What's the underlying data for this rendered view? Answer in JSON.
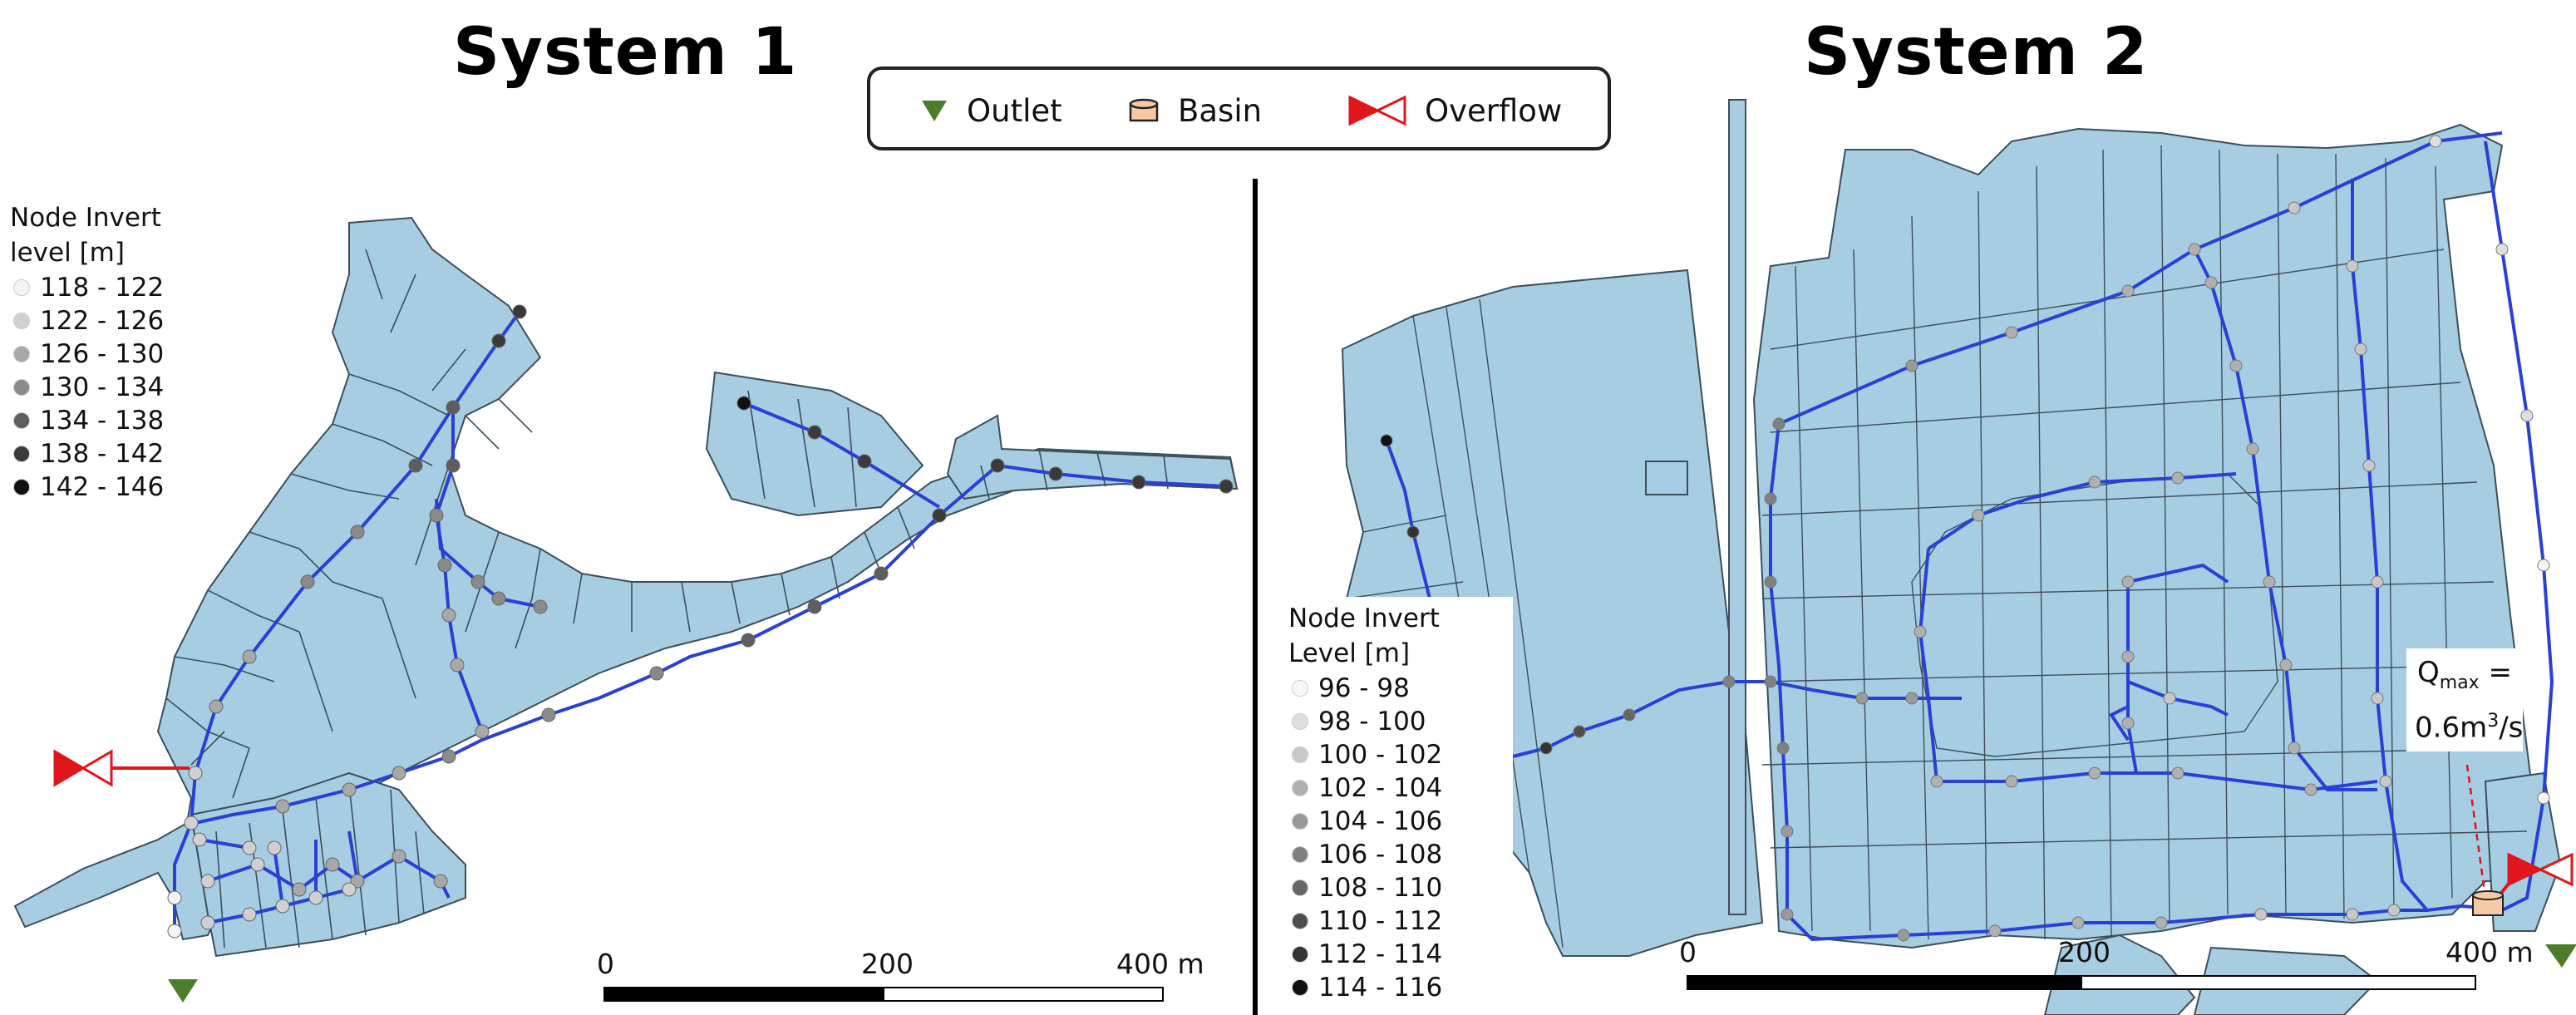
{
  "titles": {
    "system1": "System 1",
    "system2": "System 2"
  },
  "legend": {
    "outlet": {
      "label": "Outlet",
      "color": "#4b7d2a",
      "icon": "green-triangle-icon"
    },
    "basin": {
      "label": "Basin",
      "color": "#f5c9a4",
      "icon": "basin-cylinder-icon"
    },
    "overflow": {
      "label": "Overflow",
      "color": "#e0161b",
      "icon": "bowtie-overflow-icon"
    }
  },
  "system1_legend": {
    "title_line1": "Node Invert",
    "title_line2": "level [m]",
    "classes": [
      {
        "label": "118 - 122",
        "color": "#f4f4f4"
      },
      {
        "label": "122 - 126",
        "color": "#d0d0d0"
      },
      {
        "label": "126 - 130",
        "color": "#a8a8a8"
      },
      {
        "label": "130 - 134",
        "color": "#8a8a8a"
      },
      {
        "label": "134 - 138",
        "color": "#5e5e5e"
      },
      {
        "label": "138 - 142",
        "color": "#3a3a3a"
      },
      {
        "label": "142 - 146",
        "color": "#111111"
      }
    ]
  },
  "system2_legend": {
    "title_line1": "Node Invert",
    "title_line2": "Level [m]",
    "classes": [
      {
        "label": "96 - 98",
        "color": "#f7f7f7"
      },
      {
        "label": "98 - 100",
        "color": "#dedede"
      },
      {
        "label": "100 - 102",
        "color": "#c8c8c8"
      },
      {
        "label": "102 - 104",
        "color": "#b0b0b0"
      },
      {
        "label": "104 - 106",
        "color": "#999999"
      },
      {
        "label": "106 - 108",
        "color": "#808080"
      },
      {
        "label": "108 - 110",
        "color": "#676767"
      },
      {
        "label": "110 - 112",
        "color": "#4e4e4e"
      },
      {
        "label": "112 - 114",
        "color": "#343434"
      },
      {
        "label": "114 - 116",
        "color": "#111111"
      }
    ]
  },
  "scalebar1": {
    "ticks": [
      "0",
      "200",
      "400 m"
    ]
  },
  "scalebar2": {
    "ticks": [
      "0",
      "200",
      "400 m"
    ]
  },
  "annotation": {
    "q": "Q",
    "sub": "max",
    "eq": " =",
    "value": "0.6m",
    "sup": "3",
    "unit": "/s"
  },
  "colors": {
    "parcel_fill": "#a6cde2",
    "parcel_stroke": "#3d4e5a",
    "pipe": "#2a3fd6",
    "overflow_line": "#e0161b",
    "divider": "#000000"
  }
}
